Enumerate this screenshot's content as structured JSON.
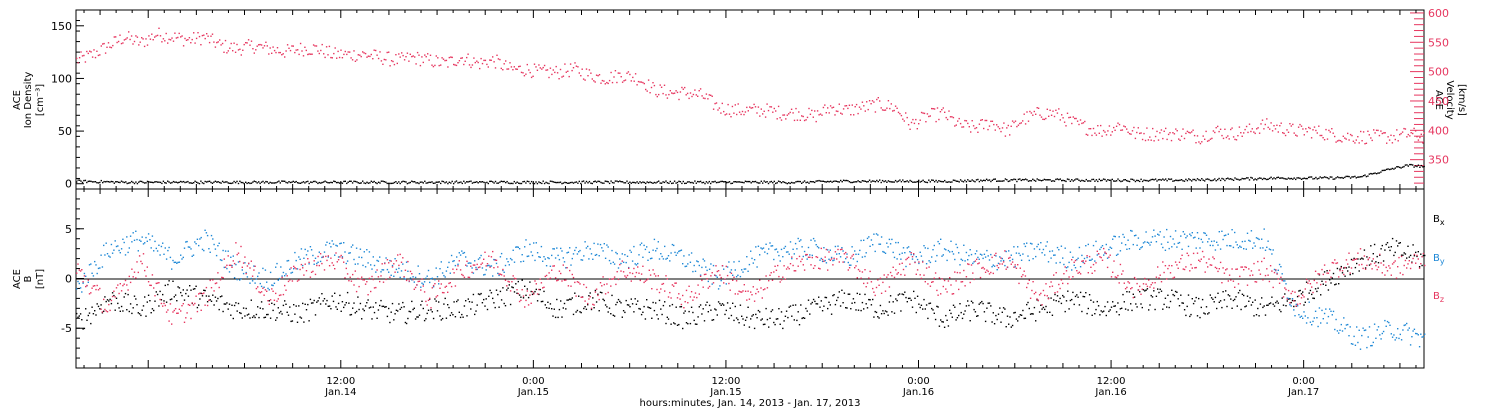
{
  "colors": {
    "black": "#000000",
    "pink": "#e6365f",
    "blue": "#1e88d6"
  },
  "chart_data": [
    {
      "type": "scatter",
      "panel": "plasma",
      "ylabel_left": [
        "ACE",
        "Ion Density",
        "[cm⁻³]"
      ],
      "ylabel_right": [
        "ACE",
        "Velocity",
        "[km/s]"
      ],
      "ylim_left": [
        -5,
        165
      ],
      "ylim_right": [
        300,
        605
      ],
      "yticks_left": [
        0,
        50,
        100,
        150
      ],
      "yticks_right": [
        350,
        400,
        450,
        500,
        550,
        600
      ],
      "series": [
        {
          "name": "Velocity",
          "axis": "right",
          "color": "pink",
          "points": [
            [
              0.0,
              520
            ],
            [
              1.0,
              530
            ],
            [
              2.0,
              545
            ],
            [
              3.0,
              560
            ],
            [
              4.0,
              550
            ],
            [
              5.0,
              565
            ],
            [
              6.0,
              560
            ],
            [
              7.0,
              555
            ],
            [
              8.0,
              560
            ],
            [
              9.0,
              545
            ],
            [
              10.0,
              540
            ],
            [
              11.0,
              545
            ],
            [
              12.0,
              540
            ],
            [
              13.0,
              535
            ],
            [
              14.0,
              540
            ],
            [
              15.0,
              540
            ],
            [
              16.0,
              530
            ],
            [
              17.0,
              530
            ],
            [
              18.0,
              530
            ],
            [
              19.0,
              525
            ],
            [
              20.0,
              520
            ],
            [
              21.0,
              525
            ],
            [
              22.0,
              520
            ],
            [
              23.0,
              515
            ],
            [
              24.0,
              525
            ],
            [
              25.0,
              515
            ],
            [
              26.0,
              520
            ],
            [
              27.0,
              505
            ],
            [
              28.0,
              505
            ],
            [
              29.0,
              500
            ],
            [
              30.0,
              500
            ],
            [
              31.0,
              505
            ],
            [
              32.0,
              495
            ],
            [
              33.0,
              490
            ],
            [
              34.0,
              495
            ],
            [
              35.0,
              490
            ],
            [
              36.0,
              470
            ],
            [
              37.0,
              465
            ],
            [
              38.0,
              465
            ],
            [
              39.0,
              460
            ],
            [
              40.0,
              440
            ],
            [
              41.0,
              435
            ],
            [
              42.0,
              435
            ],
            [
              43.0,
              435
            ],
            [
              44.0,
              430
            ],
            [
              45.0,
              430
            ],
            [
              46.0,
              425
            ],
            [
              47.0,
              440
            ],
            [
              48.0,
              435
            ],
            [
              49.0,
              440
            ],
            [
              50.0,
              445
            ],
            [
              51.0,
              440
            ],
            [
              52.0,
              410
            ],
            [
              53.0,
              425
            ],
            [
              54.0,
              430
            ],
            [
              55.0,
              410
            ],
            [
              56.0,
              405
            ],
            [
              57.0,
              415
            ],
            [
              58.0,
              400
            ],
            [
              59.0,
              420
            ],
            [
              60.0,
              430
            ],
            [
              61.0,
              430
            ],
            [
              62.0,
              415
            ],
            [
              63.0,
              405
            ],
            [
              64.0,
              400
            ],
            [
              65.0,
              410
            ],
            [
              66.0,
              395
            ],
            [
              67.0,
              395
            ],
            [
              68.0,
              395
            ],
            [
              69.0,
              395
            ],
            [
              70.0,
              390
            ],
            [
              71.0,
              400
            ],
            [
              72.0,
              395
            ],
            [
              73.0,
              400
            ],
            [
              74.0,
              410
            ],
            [
              75.0,
              405
            ],
            [
              76.0,
              400
            ],
            [
              77.0,
              400
            ],
            [
              78.0,
              395
            ],
            [
              79.0,
              390
            ],
            [
              80.0,
              390
            ],
            [
              81.0,
              390
            ],
            [
              82.0,
              390
            ],
            [
              83.0,
              395
            ],
            [
              84.0,
              390
            ]
          ]
        },
        {
          "name": "Ion Density",
          "axis": "left",
          "color": "black",
          "points": [
            [
              0.0,
              3
            ],
            [
              3.0,
              2
            ],
            [
              6.0,
              2
            ],
            [
              9.0,
              2
            ],
            [
              12.0,
              2
            ],
            [
              15.0,
              2
            ],
            [
              18.0,
              2
            ],
            [
              21.0,
              2
            ],
            [
              24.0,
              2
            ],
            [
              27.0,
              2
            ],
            [
              30.0,
              2
            ],
            [
              33.0,
              2
            ],
            [
              36.0,
              2
            ],
            [
              39.0,
              2
            ],
            [
              42.0,
              2
            ],
            [
              45.0,
              2
            ],
            [
              48.0,
              3
            ],
            [
              51.0,
              3
            ],
            [
              54.0,
              3
            ],
            [
              57.0,
              4
            ],
            [
              60.0,
              4
            ],
            [
              63.0,
              4
            ],
            [
              66.0,
              4
            ],
            [
              69.0,
              4
            ],
            [
              72.0,
              5
            ],
            [
              75.0,
              6
            ],
            [
              78.0,
              6
            ],
            [
              80.0,
              7
            ],
            [
              82.0,
              15
            ],
            [
              83.0,
              18
            ],
            [
              84.0,
              17
            ]
          ]
        }
      ]
    },
    {
      "type": "scatter",
      "panel": "imf",
      "ylabel_left": [
        "ACE",
        "B",
        "[nT]"
      ],
      "ylim_left": [
        -9,
        9
      ],
      "yticks_left": [
        -5,
        0,
        5
      ],
      "legend": [
        {
          "text": "B",
          "sub": "x",
          "color": "black"
        },
        {
          "text": "B",
          "sub": "y",
          "color": "blue"
        },
        {
          "text": "B",
          "sub": "z",
          "color": "pink"
        }
      ],
      "series": [
        {
          "name": "Bx",
          "color": "black",
          "points": [
            [
              0,
              -4.5
            ],
            [
              2,
              -2
            ],
            [
              4,
              -3
            ],
            [
              6,
              -1
            ],
            [
              8,
              -2
            ],
            [
              10,
              -3
            ],
            [
              12,
              -3
            ],
            [
              14,
              -3.5
            ],
            [
              16,
              -2
            ],
            [
              18,
              -3
            ],
            [
              20,
              -3.5
            ],
            [
              22,
              -3
            ],
            [
              24,
              -3
            ],
            [
              26,
              -2
            ],
            [
              28,
              -1
            ],
            [
              30,
              -3
            ],
            [
              32,
              -2
            ],
            [
              34,
              -3
            ],
            [
              36,
              -3
            ],
            [
              38,
              -4
            ],
            [
              40,
              -3
            ],
            [
              42,
              -4
            ],
            [
              44,
              -4
            ],
            [
              46,
              -3
            ],
            [
              48,
              -2
            ],
            [
              50,
              -3
            ],
            [
              52,
              -2
            ],
            [
              54,
              -4
            ],
            [
              56,
              -3
            ],
            [
              58,
              -4
            ],
            [
              60,
              -3
            ],
            [
              62,
              -2
            ],
            [
              64,
              -3
            ],
            [
              66,
              -2
            ],
            [
              68,
              -2
            ],
            [
              70,
              -3
            ],
            [
              72,
              -2
            ],
            [
              74,
              -3
            ],
            [
              76,
              -2
            ],
            [
              78,
              0
            ],
            [
              80,
              2
            ],
            [
              82,
              3
            ],
            [
              84,
              2
            ]
          ]
        },
        {
          "name": "By",
          "color": "blue",
          "points": [
            [
              0,
              -1
            ],
            [
              2,
              3
            ],
            [
              4,
              4
            ],
            [
              6,
              2
            ],
            [
              8,
              4
            ],
            [
              10,
              1
            ],
            [
              12,
              0
            ],
            [
              14,
              2
            ],
            [
              16,
              3
            ],
            [
              18,
              2
            ],
            [
              20,
              1
            ],
            [
              22,
              0
            ],
            [
              24,
              2
            ],
            [
              26,
              1
            ],
            [
              28,
              3
            ],
            [
              30,
              2
            ],
            [
              32,
              3
            ],
            [
              34,
              2
            ],
            [
              36,
              3
            ],
            [
              38,
              2
            ],
            [
              40,
              0
            ],
            [
              42,
              2
            ],
            [
              44,
              3
            ],
            [
              46,
              3
            ],
            [
              48,
              2
            ],
            [
              50,
              4
            ],
            [
              52,
              2
            ],
            [
              54,
              3
            ],
            [
              56,
              2
            ],
            [
              58,
              2
            ],
            [
              60,
              3
            ],
            [
              62,
              2
            ],
            [
              64,
              3
            ],
            [
              66,
              4
            ],
            [
              68,
              4
            ],
            [
              70,
              4
            ],
            [
              72,
              4
            ],
            [
              74,
              4
            ],
            [
              76,
              -3
            ],
            [
              78,
              -4
            ],
            [
              80,
              -6
            ],
            [
              82,
              -5
            ],
            [
              84,
              -6
            ]
          ]
        },
        {
          "name": "Bz",
          "color": "pink",
          "points": [
            [
              0,
              1
            ],
            [
              2,
              -3
            ],
            [
              4,
              2
            ],
            [
              6,
              -4
            ],
            [
              8,
              -2
            ],
            [
              10,
              3
            ],
            [
              12,
              -2
            ],
            [
              14,
              1
            ],
            [
              16,
              2
            ],
            [
              18,
              -1
            ],
            [
              20,
              2
            ],
            [
              22,
              -2
            ],
            [
              24,
              1
            ],
            [
              26,
              2
            ],
            [
              28,
              -2
            ],
            [
              30,
              1
            ],
            [
              32,
              -2
            ],
            [
              34,
              1
            ],
            [
              36,
              0
            ],
            [
              38,
              -2
            ],
            [
              40,
              1
            ],
            [
              42,
              -2
            ],
            [
              44,
              1
            ],
            [
              46,
              2
            ],
            [
              48,
              2
            ],
            [
              50,
              -1
            ],
            [
              52,
              2
            ],
            [
              54,
              -1
            ],
            [
              56,
              1
            ],
            [
              58,
              2
            ],
            [
              60,
              -2
            ],
            [
              62,
              1
            ],
            [
              64,
              2
            ],
            [
              66,
              -1
            ],
            [
              68,
              1
            ],
            [
              70,
              2
            ],
            [
              72,
              0
            ],
            [
              74,
              1
            ],
            [
              76,
              -2
            ],
            [
              78,
              1
            ],
            [
              80,
              2
            ],
            [
              82,
              1
            ],
            [
              84,
              2
            ]
          ]
        }
      ]
    }
  ],
  "x_axis": {
    "ticks": [
      {
        "hours": 12,
        "time": "12:00",
        "date": "Jan.14"
      },
      {
        "hours": 24,
        "time": "0:00",
        "date": "Jan.15"
      },
      {
        "hours": 36,
        "time": "12:00",
        "date": "Jan.15"
      },
      {
        "hours": 48,
        "time": "0:00",
        "date": "Jan.16"
      },
      {
        "hours": 60,
        "time": "12:00",
        "date": "Jan.16"
      },
      {
        "hours": 72,
        "time": "0:00",
        "date": "Jan.17"
      }
    ],
    "range_hours": [
      -4.5,
      79.5
    ],
    "title": "hours:minutes, Jan. 14, 2013 - Jan. 17, 2013"
  }
}
